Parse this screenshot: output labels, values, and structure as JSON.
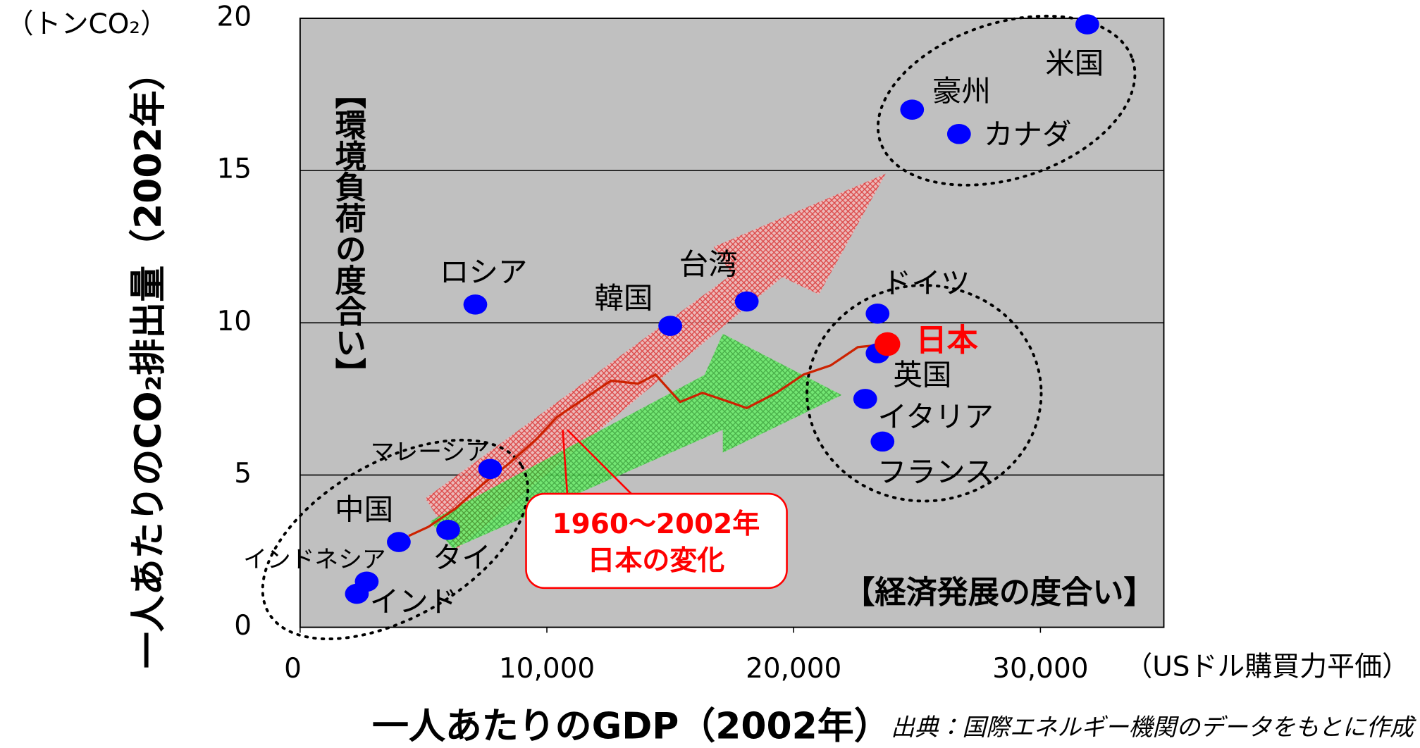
{
  "chart_data": {
    "type": "scatter",
    "y_unit": "（トンCO₂）",
    "y_title": "一人あたりのCO₂排出量（2002年）",
    "x_title": "一人あたりのGDP（2002年）",
    "x_unit": "（USドル購買力平価）",
    "source": "出典：国際エネルギー機関のデータをもとに作成",
    "y_annotation": "【環境負荷の度合い】",
    "x_annotation": "【経済発展の度合い】",
    "callout": [
      "1960～2002年",
      "日本の変化"
    ],
    "xlim": [
      0,
      35000
    ],
    "ylim": [
      0,
      20
    ],
    "xticks": [
      0,
      {
        "value": 10000,
        "label": "10,000"
      },
      {
        "value": 20000,
        "label": "20,000"
      },
      {
        "value": 30000,
        "label": "30,000"
      }
    ],
    "yticks": [
      0,
      5,
      10,
      15,
      20
    ],
    "grid": true,
    "points": [
      {
        "label": "米国",
        "x": 31900,
        "y": 19.8,
        "color": "#0000ff"
      },
      {
        "label": "豪州",
        "x": 24800,
        "y": 17.0,
        "color": "#0000ff"
      },
      {
        "label": "カナダ",
        "x": 26700,
        "y": 16.2,
        "color": "#0000ff"
      },
      {
        "label": "ロシア",
        "x": 7100,
        "y": 10.6,
        "color": "#0000ff"
      },
      {
        "label": "韓国",
        "x": 15000,
        "y": 9.9,
        "color": "#0000ff"
      },
      {
        "label": "台湾",
        "x": 18100,
        "y": 10.7,
        "color": "#0000ff"
      },
      {
        "label": "ドイツ",
        "x": 23400,
        "y": 10.3,
        "color": "#0000ff"
      },
      {
        "label": "英国",
        "x": 23400,
        "y": 9.0,
        "color": "#0000ff"
      },
      {
        "label": "日本",
        "x": 23800,
        "y": 9.3,
        "color": "#ff0000"
      },
      {
        "label": "イタリア",
        "x": 22900,
        "y": 7.5,
        "color": "#0000ff"
      },
      {
        "label": "フランス",
        "x": 23600,
        "y": 6.1,
        "color": "#0000ff"
      },
      {
        "label": "マレーシア",
        "x": 7700,
        "y": 5.2,
        "color": "#0000ff"
      },
      {
        "label": "タイ",
        "x": 6000,
        "y": 3.2,
        "color": "#0000ff"
      },
      {
        "label": "中国",
        "x": 4000,
        "y": 2.8,
        "color": "#0000ff"
      },
      {
        "label": "インドネシア",
        "x": 2700,
        "y": 1.5,
        "color": "#0000ff"
      },
      {
        "label": "インド",
        "x": 2300,
        "y": 1.1,
        "color": "#0000ff"
      }
    ],
    "trajectory": {
      "color": "#cc2200",
      "x": [
        4400,
        5200,
        6300,
        7400,
        8500,
        9600,
        10400,
        11500,
        12600,
        13700,
        14400,
        15400,
        16300,
        17400,
        18100,
        19300,
        20400,
        21500,
        22600,
        23800
      ],
      "y": [
        3.0,
        3.3,
        3.9,
        4.7,
        5.4,
        6.2,
        6.9,
        7.5,
        8.1,
        8.0,
        8.3,
        7.4,
        7.7,
        7.4,
        7.2,
        7.7,
        8.3,
        8.6,
        9.2,
        9.3
      ]
    }
  }
}
